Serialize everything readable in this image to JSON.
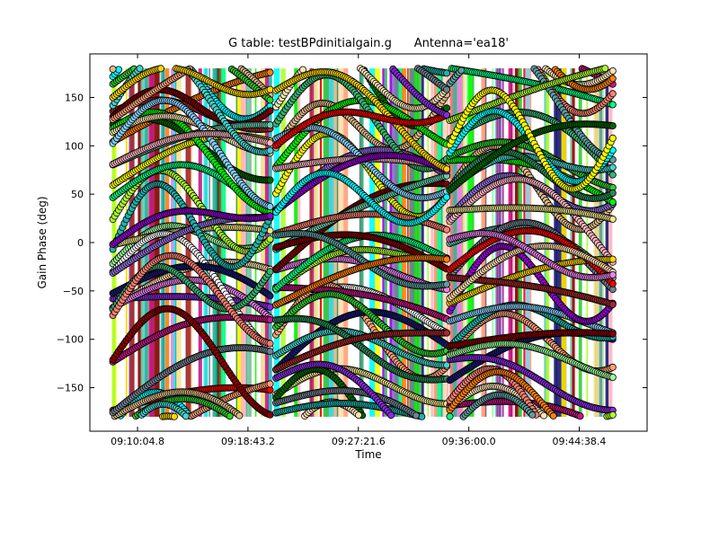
{
  "chart_data": {
    "type": "scatter",
    "title": "G table: testBPdinitialgain.g      Antenna='ea18'",
    "xlabel": "Time",
    "ylabel": "Gain Phase (deg)",
    "x_axis_kind": "time",
    "xlim": [
      "09:06:21",
      "09:49:57"
    ],
    "ylim": [
      -195,
      195
    ],
    "x_ticks": [
      "09:10:04.8",
      "09:18:43.2",
      "09:27:21.6",
      "09:36:00.0",
      "09:44:38.4"
    ],
    "y_ticks": [
      -150,
      -100,
      -50,
      0,
      50,
      100,
      150
    ],
    "grid": false,
    "legend": "none",
    "time_segments": [
      {
        "start": "09:08:09",
        "end": "09:20:29"
      },
      {
        "start": "09:20:55",
        "end": "09:34:21"
      },
      {
        "start": "09:34:31",
        "end": "09:47:17"
      }
    ],
    "series_colors": [
      "#ff7f0e",
      "#ff0000",
      "#8a2be2",
      "#00ffff",
      "#a52a2a",
      "#98fb98",
      "#ffdead",
      "#f0e68c",
      "#ee82ee",
      "#adff2f",
      "#006400",
      "#ffff00",
      "#ffffff",
      "#800000",
      "#ffa07a",
      "#deb887",
      "#c71585",
      "#191970",
      "#00ff7f",
      "#9370db",
      "#66cdaa",
      "#00ff00",
      "#3cb371",
      "#ffe4b5",
      "#20b2aa",
      "#708090",
      "#87cefa",
      "#fa8072",
      "#ffb6c1",
      "#32cd32",
      "#48d1cc",
      "#8b0000",
      "#9400d3",
      "#ffd700",
      "#5f9ea0",
      "#2e8b57"
    ],
    "point_fill_example": "#ff7f0e",
    "point_stroke": "#000000"
  }
}
